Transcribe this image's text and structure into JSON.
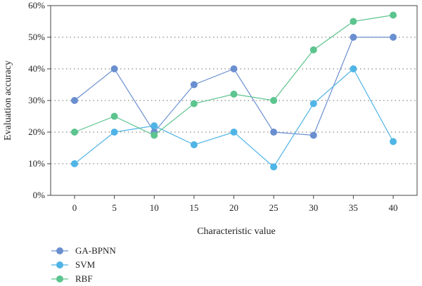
{
  "chart_data": {
    "type": "line",
    "x": [
      0,
      5,
      10,
      15,
      20,
      25,
      30,
      35,
      40
    ],
    "xticks": [
      "0",
      "5",
      "10",
      "15",
      "20",
      "25",
      "30",
      "35",
      "40"
    ],
    "xlim": [
      -3,
      43
    ],
    "xlabel": "Characteristic value",
    "ylabel": "Evaluation accuracy",
    "ylim": [
      0,
      60
    ],
    "yticks": [
      "0%",
      "10%",
      "20%",
      "30%",
      "40%",
      "50%",
      "60%"
    ],
    "grid": "horizontal-dotted",
    "legend_position": "bottom-left",
    "series": [
      {
        "name": "GA-BPNN",
        "color": "#6a8fd0",
        "values": [
          30,
          40,
          20,
          35,
          40,
          20,
          19,
          50,
          50
        ]
      },
      {
        "name": "SVM",
        "color": "#4fb4e6",
        "values": [
          10,
          20,
          22,
          16,
          20,
          9,
          29,
          40,
          17
        ]
      },
      {
        "name": "RBF",
        "color": "#5cc48e",
        "values": [
          20,
          25,
          19,
          29,
          32,
          30,
          46,
          55,
          57
        ]
      }
    ]
  }
}
